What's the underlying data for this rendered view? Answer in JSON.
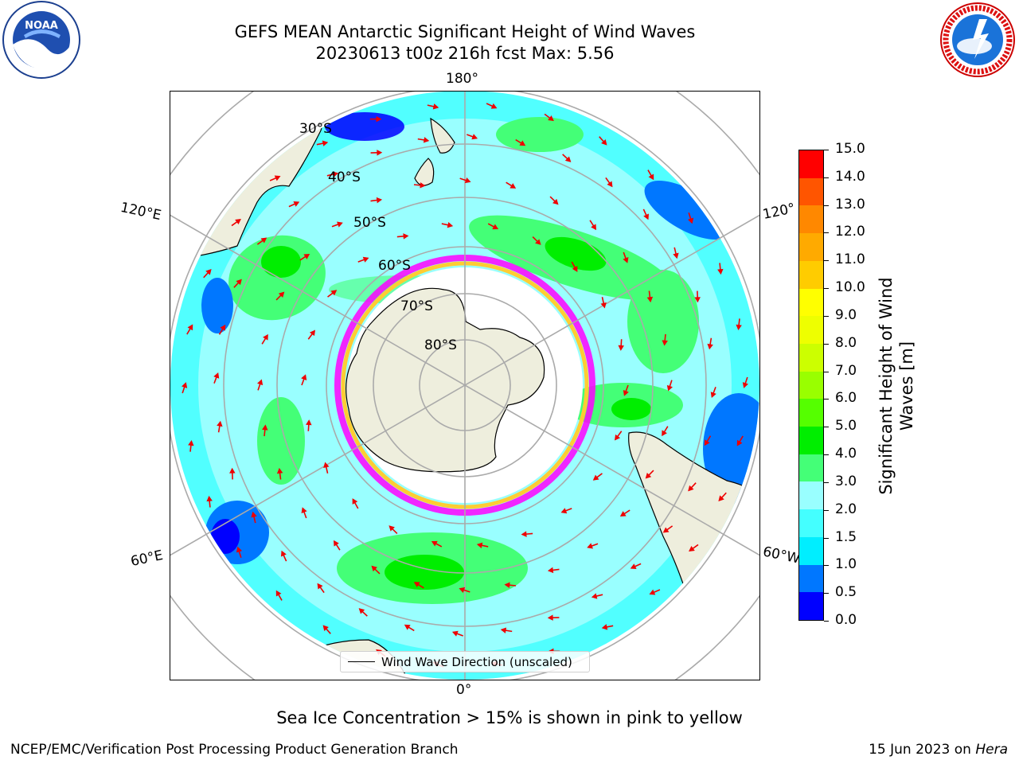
{
  "title": {
    "line1": "GEFS MEAN Antarctic Significant Height of Wind Waves",
    "line2": "20230613 t00z 216h fcst   Max: 5.56"
  },
  "logos": {
    "left": {
      "name": "NOAA",
      "ring_text": "NATIONAL OCEANIC AND ATMOSPHERIC ADMINISTRATION",
      "ring_text_bottom": "U.S. DEPARTMENT OF COMMERCE"
    },
    "right": {
      "name": "NATIONAL WEATHER SERVICE"
    }
  },
  "map": {
    "projection": "south-polar-stereographic",
    "lon_labels": {
      "top": "180°",
      "bottom": "0°",
      "left_upper": "120°E",
      "left_lower": "60°E",
      "right_upper": "120°",
      "right_lower": "60°W"
    },
    "lat_labels": [
      "30°S",
      "40°S",
      "50°S",
      "60°S",
      "70°S",
      "80°S"
    ],
    "legend_label": "Wind Wave Direction (unscaled)",
    "ice_colors": [
      "#ff00ff",
      "#ff66cc",
      "#ffcc33",
      "#ffff66"
    ]
  },
  "colorbar": {
    "label": "Significant Height of Wind Waves [m]",
    "label_line1": "Significant Height of Wind",
    "label_line2": "Waves [m]",
    "ticks": [
      "0.0",
      "0.5",
      "1.0",
      "1.5",
      "2.0",
      "3.0",
      "4.0",
      "5.0",
      "6.0",
      "7.0",
      "8.0",
      "9.0",
      "10.0",
      "11.0",
      "12.0",
      "13.0",
      "14.0",
      "15.0"
    ],
    "colors": [
      "#0000ff",
      "#0077ff",
      "#00eeff",
      "#44ffff",
      "#99ffff",
      "#44ff77",
      "#00ee00",
      "#55ff00",
      "#99ff00",
      "#ccff00",
      "#eeff00",
      "#ffff00",
      "#ffcc00",
      "#ffaa00",
      "#ff8800",
      "#ff5500",
      "#ff0000"
    ]
  },
  "caption": "Sea Ice Concentration > 15% is shown in pink to yellow",
  "footer": {
    "left": "NCEP/EMC/Verification Post Processing Product Generation Branch",
    "date": "15 Jun 2023 on ",
    "machine": "Hera"
  }
}
